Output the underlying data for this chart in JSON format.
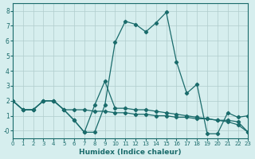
{
  "xlabel": "Humidex (Indice chaleur)",
  "ylabel": "",
  "xlim": [
    0,
    23
  ],
  "ylim": [
    -0.5,
    8.5
  ],
  "xticks": [
    0,
    1,
    2,
    3,
    4,
    5,
    6,
    7,
    8,
    9,
    10,
    11,
    12,
    13,
    14,
    15,
    16,
    17,
    18,
    19,
    20,
    21,
    22,
    23
  ],
  "yticks": [
    0,
    1,
    2,
    3,
    4,
    5,
    6,
    7,
    8
  ],
  "bg_color": "#d6eeee",
  "grid_color": "#b0cccc",
  "line_color": "#1a6b6b",
  "series": [
    [
      2.0,
      1.4,
      1.4,
      2.0,
      2.0,
      1.4,
      0.7,
      -0.1,
      -0.1,
      1.7,
      5.9,
      7.3,
      7.1,
      6.6,
      7.2,
      7.9,
      4.6,
      2.5,
      3.1,
      -0.2,
      -0.2,
      1.2,
      0.9,
      1.0
    ],
    [
      2.0,
      1.4,
      1.4,
      2.0,
      2.0,
      1.4,
      0.7,
      -0.1,
      1.7,
      3.3,
      1.5,
      1.5,
      1.4,
      1.4,
      1.3,
      1.2,
      1.1,
      1.0,
      0.9,
      0.8,
      0.7,
      0.6,
      0.4,
      -0.1
    ],
    [
      2.0,
      1.4,
      1.4,
      2.0,
      2.0,
      1.4,
      1.4,
      1.4,
      1.3,
      1.3,
      1.2,
      1.2,
      1.1,
      1.1,
      1.0,
      1.0,
      0.9,
      0.9,
      0.8,
      0.8,
      0.7,
      0.7,
      0.6,
      -0.1
    ]
  ]
}
